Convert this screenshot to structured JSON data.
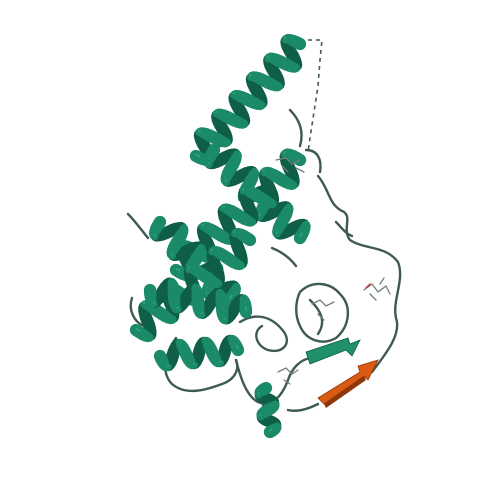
{
  "image": {
    "subject": "protein-ribbon-structure",
    "colors": {
      "background": "#ffffff",
      "helix": "#1a8a68",
      "helix_dark": "#0f5e47",
      "helix_light": "#2fa883",
      "coil": "#3e5a53",
      "strand_green": "#1f8f6c",
      "strand_orange": "#d95a12",
      "strand_orange_dark": "#8f3608",
      "stick": "#6f7f7b",
      "stick_red": "#c0392b"
    }
  }
}
